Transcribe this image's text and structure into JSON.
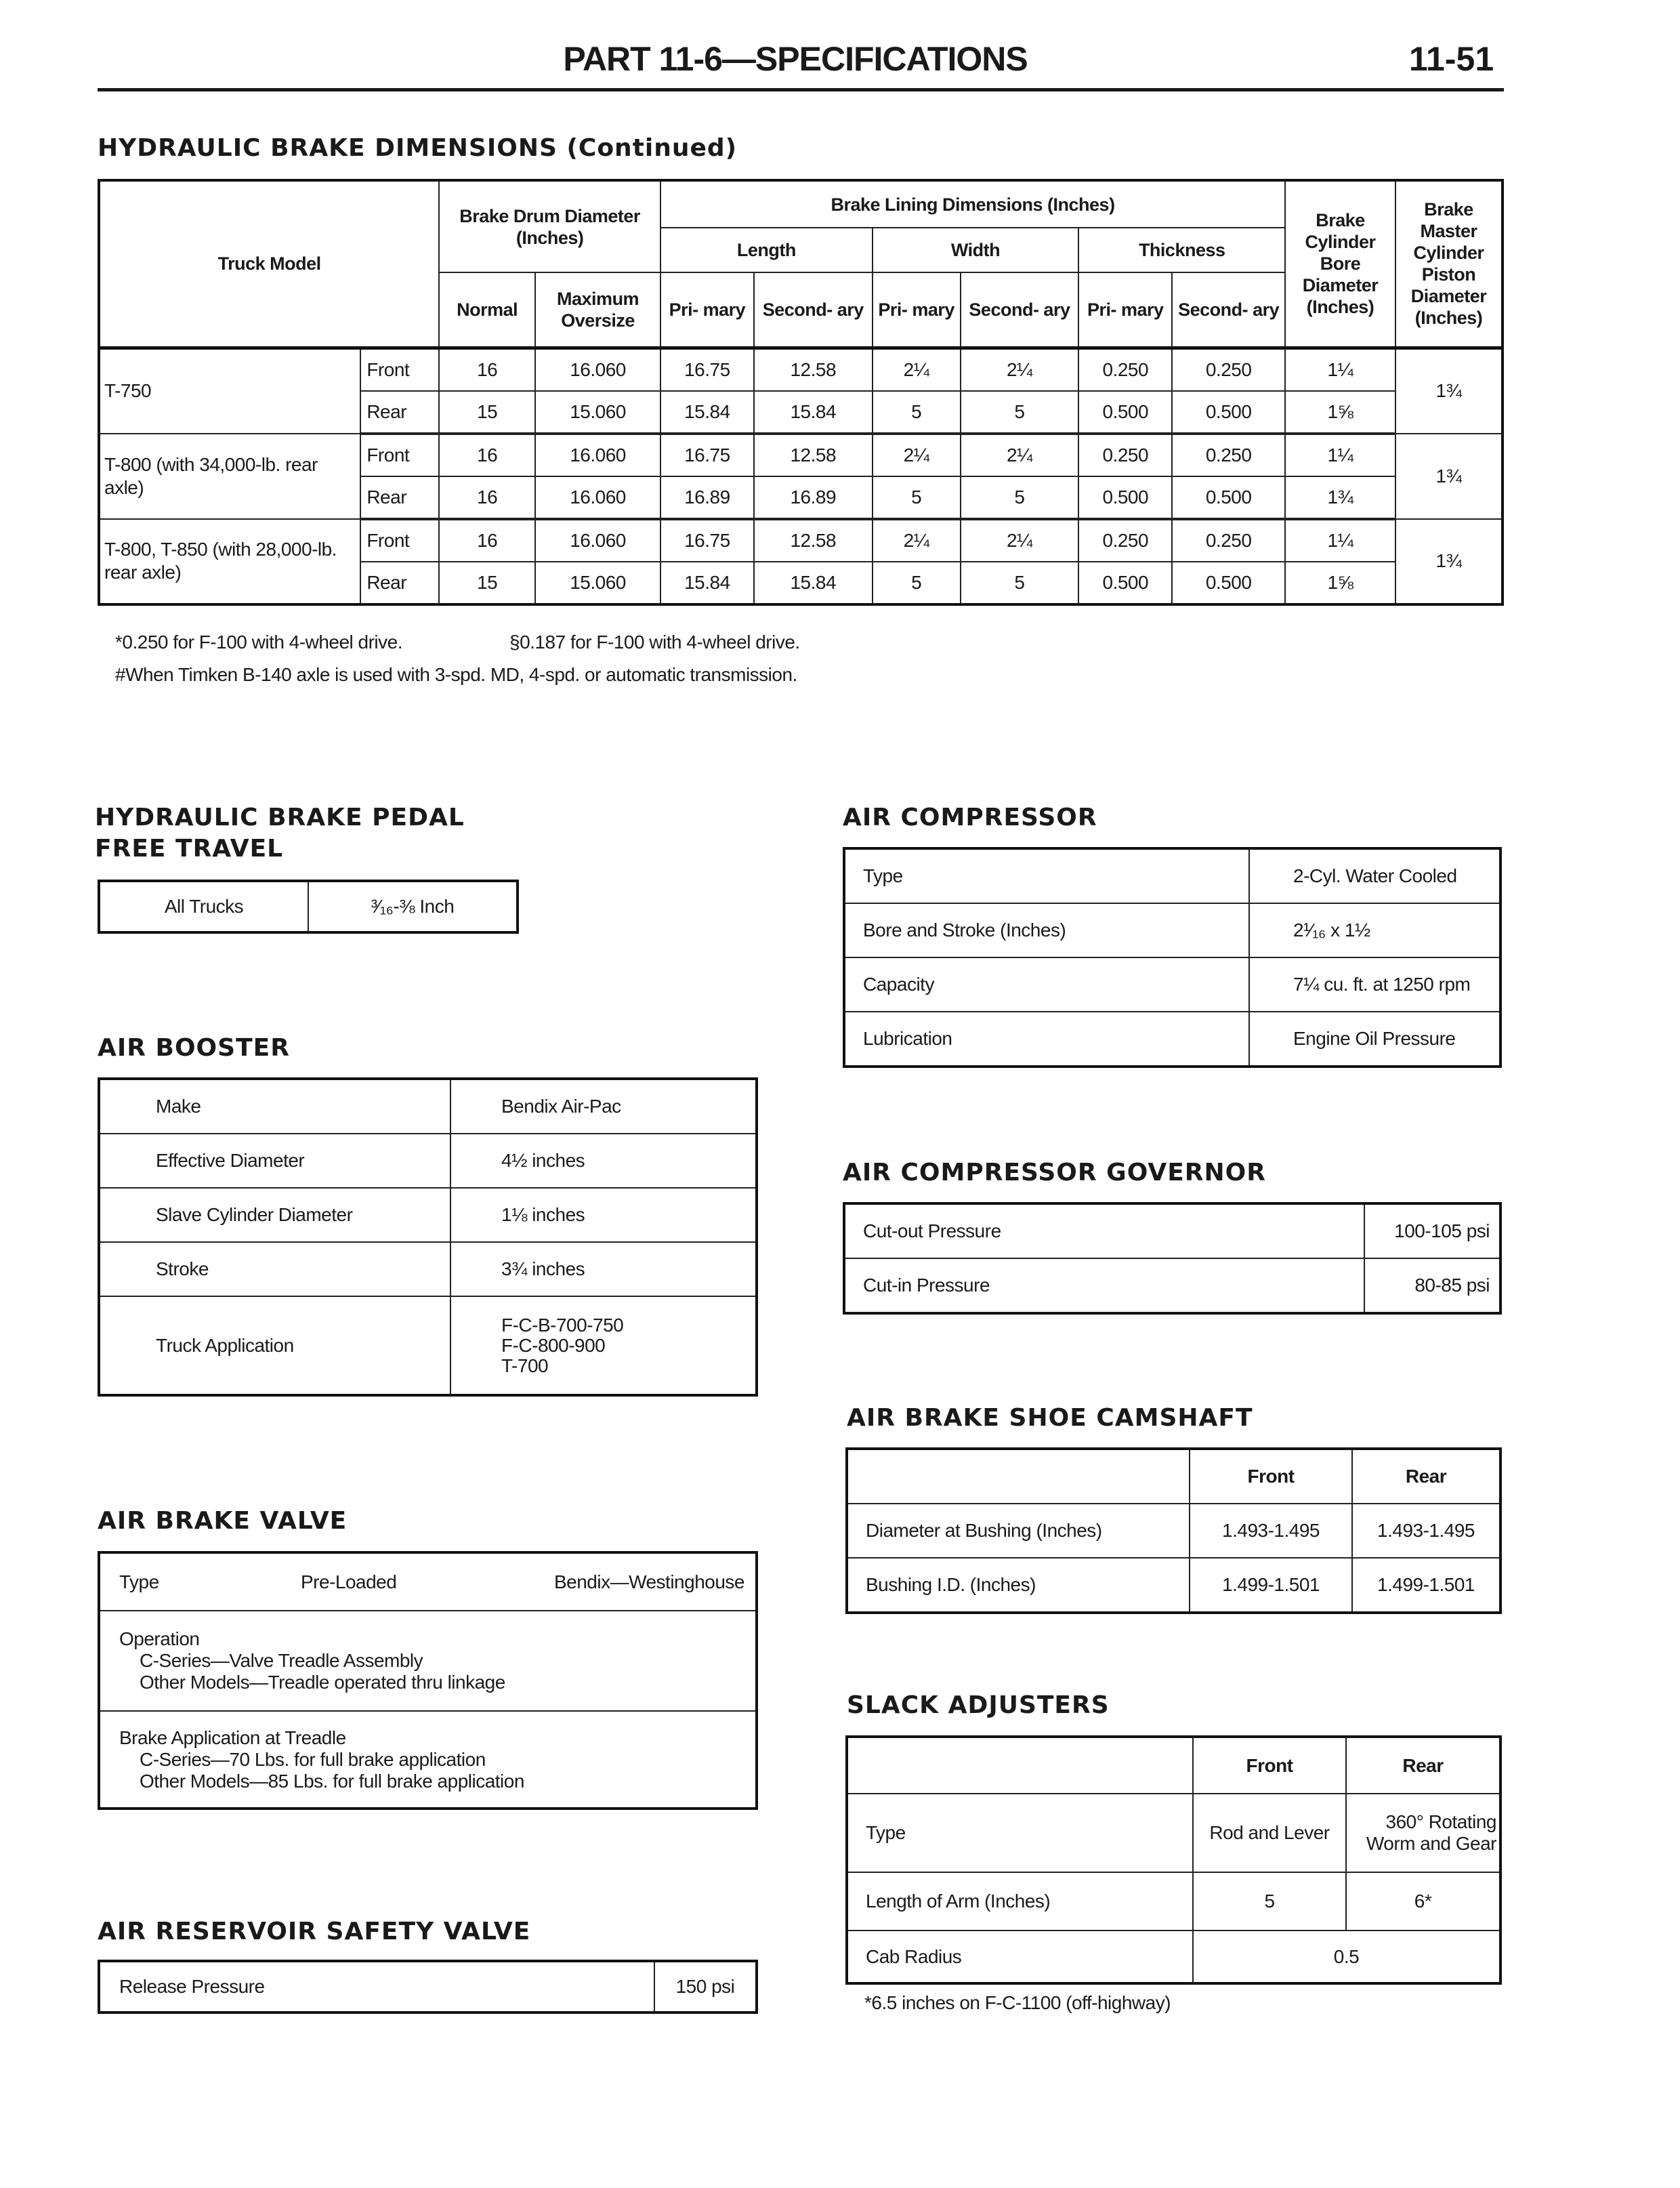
{
  "header": {
    "title": "PART 11-6—SPECIFICATIONS",
    "page": "11-51"
  },
  "hydraulic_dims": {
    "title": "HYDRAULIC BRAKE DIMENSIONS (Continued)",
    "headers": {
      "truck_model": "Truck Model",
      "drum": "Brake Drum Diameter (Inches)",
      "lining": "Brake Lining Dimensions (Inches)",
      "length": "Length",
      "width": "Width",
      "thickness": "Thickness",
      "cyl_bore": "Brake Cylinder Bore Diameter (Inches)",
      "master": "Brake Master Cylinder Piston Diameter (Inches)",
      "normal": "Normal",
      "max_oversize": "Maximum Oversize",
      "primary": "Pri- mary",
      "secondary": "Second- ary"
    },
    "models": [
      {
        "name": "T-750",
        "master": "1¾",
        "rows": [
          {
            "pos": "Front",
            "values": [
              "16",
              "16.060",
              "16.75",
              "12.58",
              "2¼",
              "2¼",
              "0.250",
              "0.250",
              "1¼"
            ]
          },
          {
            "pos": "Rear",
            "values": [
              "15",
              "15.060",
              "15.84",
              "15.84",
              "5",
              "5",
              "0.500",
              "0.500",
              "1⅝"
            ]
          }
        ]
      },
      {
        "name": "T-800 (with 34,000-lb. rear axle)",
        "master": "1¾",
        "rows": [
          {
            "pos": "Front",
            "values": [
              "16",
              "16.060",
              "16.75",
              "12.58",
              "2¼",
              "2¼",
              "0.250",
              "0.250",
              "1¼"
            ]
          },
          {
            "pos": "Rear",
            "values": [
              "16",
              "16.060",
              "16.89",
              "16.89",
              "5",
              "5",
              "0.500",
              "0.500",
              "1¾"
            ]
          }
        ]
      },
      {
        "name": "T-800, T-850 (with 28,000-lb. rear axle)",
        "master": "1¾",
        "rows": [
          {
            "pos": "Front",
            "values": [
              "16",
              "16.060",
              "16.75",
              "12.58",
              "2¼",
              "2¼",
              "0.250",
              "0.250",
              "1¼"
            ]
          },
          {
            "pos": "Rear",
            "values": [
              "15",
              "15.060",
              "15.84",
              "15.84",
              "5",
              "5",
              "0.500",
              "0.500",
              "1⅝"
            ]
          }
        ]
      }
    ],
    "footnotes": [
      "*0.250 for F-100 with 4-wheel drive.",
      "§0.187 for F-100 with 4-wheel drive.",
      "#When Timken B-140 axle is used with 3-spd. MD, 4-spd. or automatic transmission."
    ]
  },
  "pedal": {
    "title1": "HYDRAULIC BRAKE PEDAL",
    "title2": "FREE TRAVEL",
    "label": "All Trucks",
    "value": "³⁄₁₆-⅜ Inch"
  },
  "air_booster": {
    "title": "AIR BOOSTER",
    "rows": [
      {
        "label": "Make",
        "value": "Bendix Air-Pac"
      },
      {
        "label": "Effective Diameter",
        "value": "4½ inches"
      },
      {
        "label": "Slave Cylinder Diameter",
        "value": "1⅛ inches"
      },
      {
        "label": "Stroke",
        "value": "3¾ inches"
      },
      {
        "label": "Truck Application",
        "value": [
          "F-C-B-700-750",
          "F-C-800-900",
          "T-700"
        ]
      }
    ]
  },
  "air_brake_valve": {
    "title": "AIR BRAKE VALVE",
    "type_label": "Type",
    "type_value": "Pre-Loaded",
    "make": "Bendix—Westinghouse",
    "operation": [
      "Operation",
      "C-Series—Valve Treadle Assembly",
      "Other Models—Treadle operated thru linkage"
    ],
    "application": [
      "Brake Application at Treadle",
      "C-Series—70 Lbs. for full brake application",
      "Other Models—85 Lbs. for full brake application"
    ]
  },
  "reservoir": {
    "title": "AIR RESERVOIR SAFETY VALVE",
    "label": "Release Pressure",
    "value": "150 psi"
  },
  "air_compressor": {
    "title": "AIR COMPRESSOR",
    "rows": [
      {
        "label": "Type",
        "value": "2-Cyl. Water Cooled"
      },
      {
        "label": "Bore and Stroke (Inches)",
        "value": "2¹⁄₁₆ x 1½"
      },
      {
        "label": "Capacity",
        "value": "7¼ cu. ft. at 1250 rpm"
      },
      {
        "label": "Lubrication",
        "value": "Engine Oil Pressure"
      }
    ]
  },
  "governor": {
    "title": "AIR COMPRESSOR GOVERNOR",
    "rows": [
      {
        "label": "Cut-out Pressure",
        "value": "100-105 psi"
      },
      {
        "label": "Cut-in Pressure",
        "value": "80-85 psi"
      }
    ]
  },
  "camshaft": {
    "title": "AIR BRAKE SHOE CAMSHAFT",
    "front": "Front",
    "rear": "Rear",
    "rows": [
      {
        "label": "Diameter at Bushing (Inches)",
        "front": "1.493-1.495",
        "rear": "1.493-1.495"
      },
      {
        "label": "Bushing I.D. (Inches)",
        "front": "1.499-1.501",
        "rear": "1.499-1.501"
      }
    ]
  },
  "slack": {
    "title": "SLACK ADJUSTERS",
    "front": "Front",
    "rear": "Rear",
    "type_label": "Type",
    "type_front": "Rod and Lever",
    "type_rear": "360° Rotating Worm and Gear",
    "arm_label": "Length of Arm (Inches)",
    "arm_front": "5",
    "arm_rear": "6*",
    "cab_label": "Cab Radius",
    "cab_value": "0.5",
    "footnote": "*6.5 inches on F-C-1100 (off-highway)"
  }
}
